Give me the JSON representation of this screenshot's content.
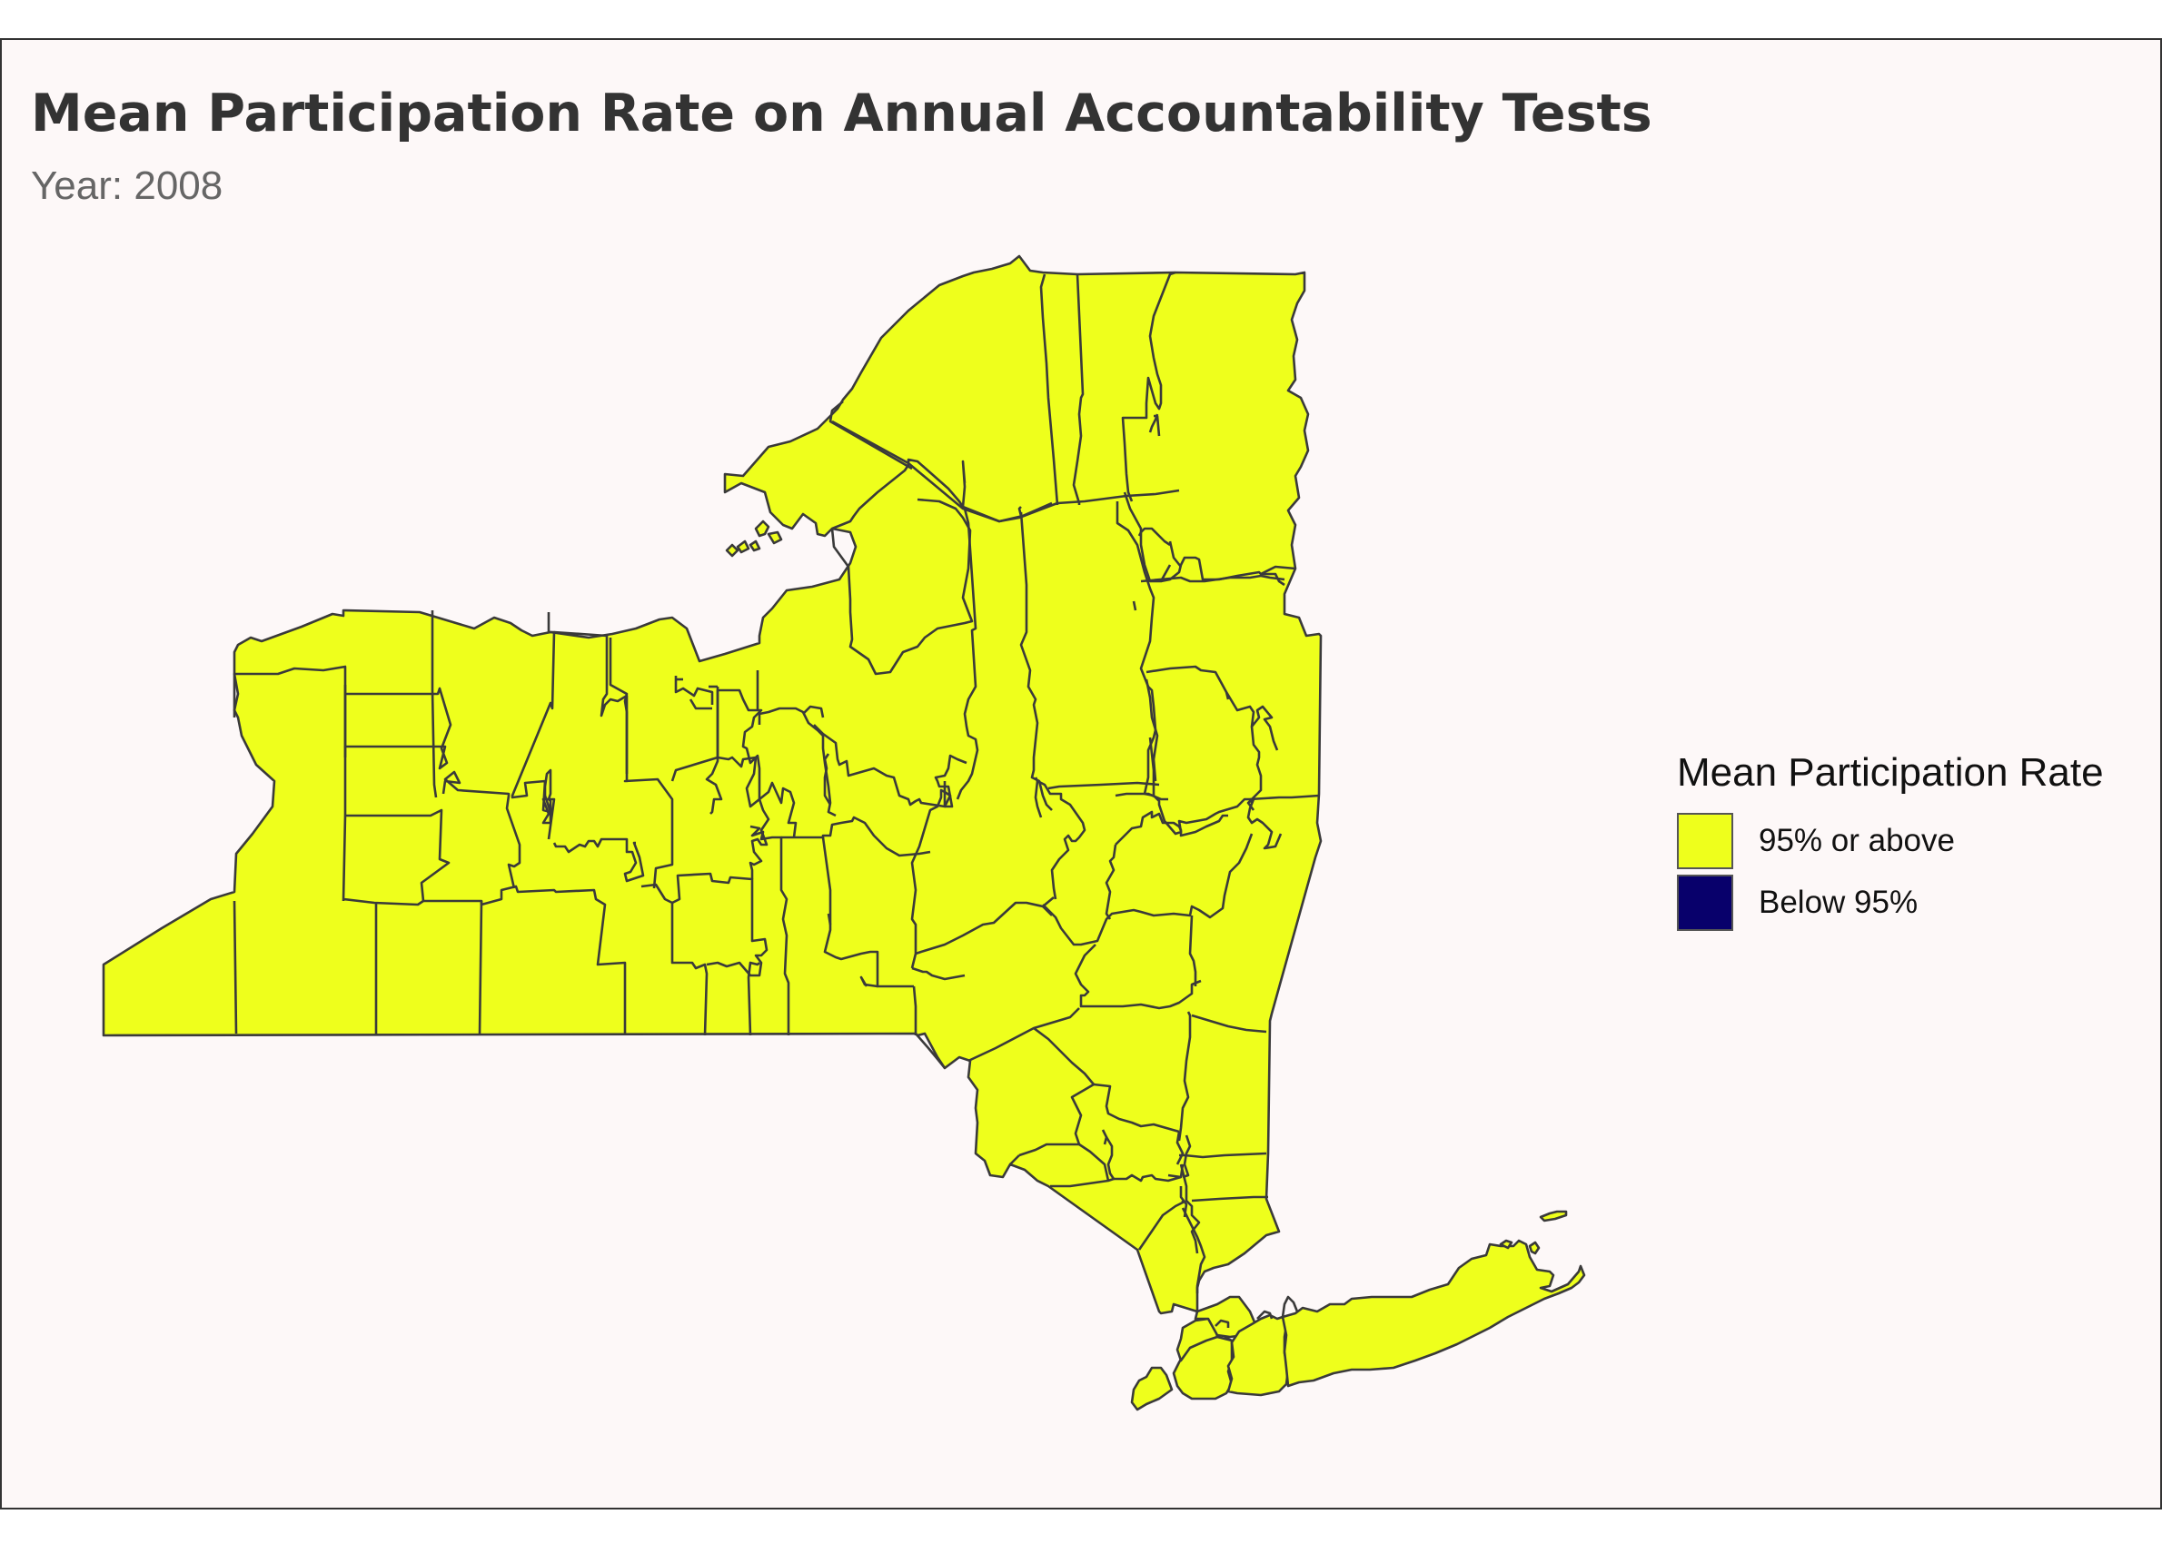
{
  "title": "Mean Participation Rate on Annual Accountability Tests",
  "subtitle": "Year: 2008",
  "chart_data": {
    "type": "choropleth",
    "region": "New York State counties",
    "legend": {
      "title": "Mean Participation Rate",
      "position": "right",
      "items": [
        {
          "label": "95% or above",
          "color": "#eeff1c"
        },
        {
          "label": "Below 95%",
          "color": "#08006b"
        }
      ]
    },
    "county_category": "95% or above",
    "border_color": "#3a3a3a",
    "background_color": "#fdf8f8"
  }
}
